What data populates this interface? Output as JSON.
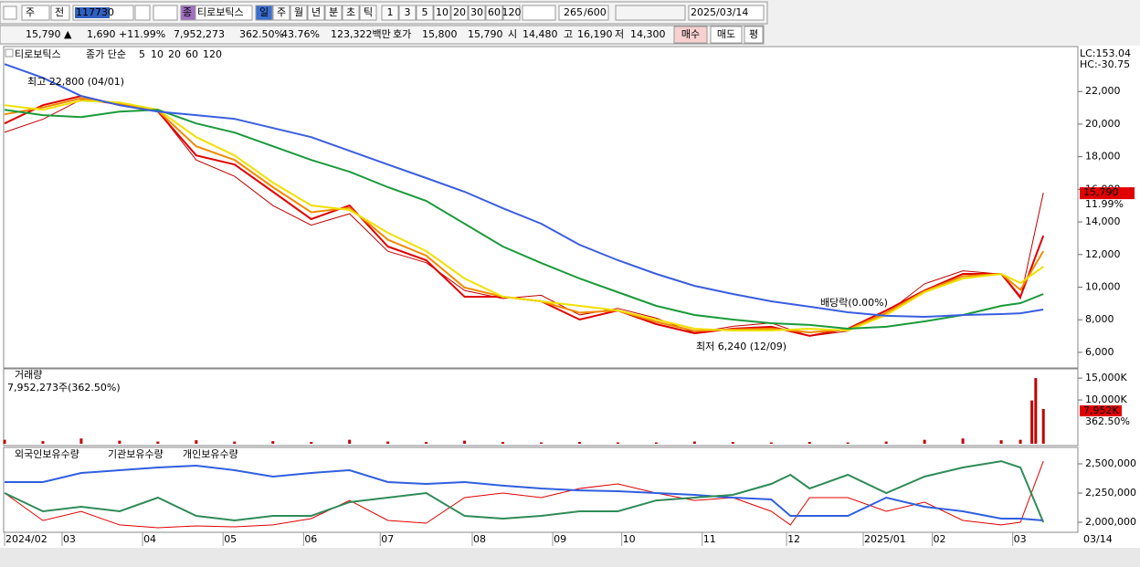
{
  "toolbar": {
    "period": "주",
    "prev": "전",
    "code": "117730",
    "type": "종",
    "name": "티로보틱스",
    "intervals": [
      "일",
      "주",
      "월",
      "년",
      "분",
      "초",
      "틱"
    ],
    "units": [
      "1",
      "3",
      "5",
      "10",
      "20",
      "30",
      "60",
      "120"
    ],
    "count": "265",
    "count_max": "/600",
    "date": "2025/03/14"
  },
  "quote": {
    "price": "15,790 ▲",
    "change": "1,690",
    "change_rate": "+11.99%",
    "volume": "7,952,273",
    "volume_rate": "362.50%",
    "turnover": "43.76%",
    "amount": "123,322백만",
    "ask_label": "호가",
    "ask": "15,800",
    "bid": "15,790",
    "open_label": "시",
    "open": "14,480",
    "high_label": "고",
    "high": "16,190",
    "low_label": "저",
    "low": "14,300",
    "buttons": [
      "매수",
      "매도",
      "평"
    ]
  },
  "x_axis": {
    "xlim": [
      0,
      280
    ],
    "xticks": [
      {
        "value": 0,
        "label": "2024/02"
      },
      {
        "value": 15,
        "label": "03"
      },
      {
        "value": 36,
        "label": "04"
      },
      {
        "value": 57,
        "label": "05"
      },
      {
        "value": 78,
        "label": "06"
      },
      {
        "value": 98,
        "label": "07"
      },
      {
        "value": 122,
        "label": "08"
      },
      {
        "value": 143,
        "label": "09"
      },
      {
        "value": 161,
        "label": "10"
      },
      {
        "value": 182,
        "label": "11"
      },
      {
        "value": 204,
        "label": "12"
      },
      {
        "value": 224,
        "label": "2025/01"
      },
      {
        "value": 242,
        "label": "02"
      },
      {
        "value": 263,
        "label": "03"
      }
    ],
    "last_date": "03/14"
  },
  "price_chart": {
    "type": "line",
    "legend_label": "종가 단순",
    "ylim": [
      5100,
      24700
    ],
    "yticks": [
      {
        "value": 6000,
        "label": "6,000"
      },
      {
        "value": 8000,
        "label": "8,000"
      },
      {
        "value": 10000,
        "label": "10,000"
      },
      {
        "value": 12000,
        "label": "12,000"
      },
      {
        "value": 14000,
        "label": "14,000"
      },
      {
        "value": 16000,
        "label": "16,000"
      },
      {
        "value": 18000,
        "label": "18,000"
      },
      {
        "value": 20000,
        "label": "20,000"
      },
      {
        "value": 22000,
        "label": "22,000"
      }
    ],
    "x": [
      0,
      10,
      20,
      30,
      40,
      50,
      60,
      70,
      80,
      90,
      100,
      110,
      120,
      130,
      140,
      150,
      160,
      170,
      180,
      190,
      200,
      210,
      220,
      230,
      240,
      250,
      260,
      265,
      271
    ],
    "series": [
      {
        "name": "티로보틱스",
        "color": "#c00000",
        "values": [
          19500,
          20300,
          21500,
          21200,
          20800,
          17800,
          16800,
          15000,
          13800,
          14500,
          12200,
          11500,
          9800,
          9300,
          9500,
          8300,
          8700,
          8100,
          7200,
          7600,
          7800,
          7000,
          7300,
          8400,
          10200,
          11000,
          10800,
          9300,
          15790
        ]
      },
      {
        "name": "5",
        "color": "#e00000",
        "values": [
          20040,
          21160,
          21720,
          21160,
          20770,
          18080,
          17520,
          15850,
          14170,
          15010,
          12490,
          11650,
          9410,
          9410,
          9130,
          8010,
          8570,
          7730,
          7170,
          7450,
          7570,
          7010,
          7450,
          8570,
          9800,
          10810,
          10810,
          9410,
          13160
        ]
      },
      {
        "name": "10",
        "color": "#f08a00",
        "values": [
          20600,
          21020,
          21580,
          21240,
          20820,
          18640,
          17800,
          16130,
          14590,
          14870,
          12910,
          11930,
          9970,
          9410,
          9130,
          8430,
          8570,
          7870,
          7310,
          7400,
          7460,
          7230,
          7400,
          8430,
          9750,
          10670,
          10810,
          9830,
          12210
        ]
      },
      {
        "name": "20",
        "color": "#f0e000",
        "values": [
          21160,
          20880,
          21440,
          21330,
          20880,
          19200,
          18080,
          16410,
          15010,
          14730,
          13330,
          12210,
          10530,
          9410,
          9130,
          8850,
          8570,
          8010,
          7450,
          7340,
          7340,
          7450,
          7340,
          8290,
          9690,
          10530,
          10810,
          10250,
          11260
        ]
      },
      {
        "name": "60",
        "color": "#1a9a3a",
        "values": [
          20880,
          20550,
          20430,
          20770,
          20880,
          20040,
          19480,
          18640,
          17800,
          17080,
          16130,
          15290,
          13890,
          12490,
          11480,
          10530,
          9690,
          8850,
          8290,
          8010,
          7790,
          7680,
          7450,
          7570,
          7900,
          8290,
          8850,
          9020,
          9580
        ]
      },
      {
        "name": "120",
        "color": "#3a5ee0",
        "values": [
          23680,
          22840,
          21720,
          21160,
          20770,
          20550,
          20320,
          19760,
          19200,
          18360,
          17520,
          16690,
          15850,
          14840,
          13890,
          12600,
          11650,
          10810,
          10080,
          9580,
          9130,
          8800,
          8460,
          8240,
          8180,
          8290,
          8350,
          8400,
          8630
        ]
      }
    ],
    "annotations": [
      "최고 22,800 (04/01)",
      "최저 6,240 (12/09)",
      "배당락(0.00%)"
    ],
    "lc": "LC:153.04",
    "hc": "HC:-30.75",
    "last_price_label": "15,790",
    "last_change_label": "11.99%"
  },
  "volume_chart": {
    "type": "bar",
    "title": "거래량",
    "summary": "7,952,273주(362.50%)",
    "color": "#c00000",
    "ylim": [
      0,
      16900
    ],
    "yticks": [
      {
        "value": 10000,
        "label": "10,000K"
      },
      {
        "value": 15000,
        "label": "15,000K"
      }
    ],
    "x": [
      0,
      10,
      20,
      30,
      40,
      50,
      60,
      70,
      80,
      90,
      100,
      110,
      120,
      130,
      140,
      150,
      160,
      170,
      180,
      190,
      200,
      210,
      220,
      230,
      240,
      250,
      260,
      265,
      268,
      269,
      271
    ],
    "values": [
      900,
      600,
      1200,
      700,
      500,
      800,
      500,
      600,
      400,
      900,
      500,
      400,
      700,
      400,
      300,
      400,
      300,
      300,
      500,
      400,
      300,
      400,
      300,
      500,
      900,
      1200,
      800,
      900,
      9900,
      15000,
      7952
    ],
    "last_label": "7,952K",
    "last_rate": "362.50%"
  },
  "investor_chart": {
    "type": "line",
    "ylim": [
      1921900,
      2625000
    ],
    "yticks": [
      {
        "value": 2000000,
        "label": "2,000,000"
      },
      {
        "value": 2250000,
        "label": "2,250,000"
      },
      {
        "value": 2500000,
        "label": "2,500,000"
      }
    ],
    "x": [
      0,
      10,
      20,
      30,
      40,
      50,
      60,
      70,
      80,
      90,
      100,
      110,
      120,
      130,
      140,
      150,
      160,
      170,
      180,
      190,
      200,
      205,
      210,
      220,
      230,
      240,
      250,
      260,
      265,
      271
    ],
    "series": [
      {
        "name": "외국인보유수량",
        "color": "#e00000",
        "values": [
          2250000,
          2015000,
          2093000,
          1977000,
          1953000,
          1969000,
          1961000,
          1977000,
          2031000,
          2187000,
          2016000,
          1992000,
          2211000,
          2250000,
          2211000,
          2289000,
          2328000,
          2250000,
          2187000,
          2211000,
          2094000,
          1977000,
          2211000,
          2211000,
          2094000,
          2172000,
          2016000,
          1977000,
          2000000,
          2523000
        ]
      },
      {
        "name": "기관보유수량",
        "color": "#2f5fe0",
        "values": [
          2344000,
          2344000,
          2422000,
          2445000,
          2469000,
          2484000,
          2445000,
          2391000,
          2422000,
          2445000,
          2344000,
          2328000,
          2344000,
          2313000,
          2289000,
          2273000,
          2266000,
          2250000,
          2234000,
          2211000,
          2195000,
          2055000,
          2055000,
          2055000,
          2211000,
          2133000,
          2094000,
          2031000,
          2031000,
          2016000
        ]
      },
      {
        "name": "개인보유수량",
        "color": "#2e8b57",
        "values": [
          2250000,
          2094000,
          2133000,
          2094000,
          2211000,
          2055000,
          2016000,
          2055000,
          2055000,
          2172000,
          2211000,
          2250000,
          2055000,
          2031000,
          2055000,
          2094000,
          2094000,
          2187000,
          2211000,
          2234000,
          2328000,
          2406000,
          2289000,
          2406000,
          2250000,
          2391000,
          2469000,
          2523000,
          2469000,
          2000000
        ]
      }
    ]
  }
}
